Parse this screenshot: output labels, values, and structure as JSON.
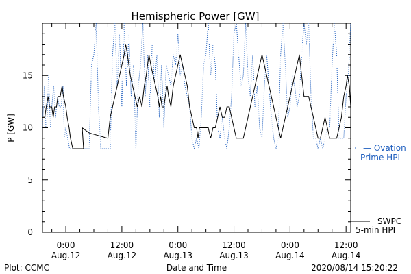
{
  "chart_data": {
    "type": "line",
    "title": "Hemispheric Power [GW]",
    "ylabel": "P [GW]",
    "xlabel": "Date and Time",
    "ylim": [
      0,
      20
    ],
    "xlim_hours": [
      -5,
      61
    ],
    "yticks": [
      0,
      5,
      10,
      15
    ],
    "xticks": [
      {
        "hour": 0,
        "time": "0:00",
        "date": "Aug.12"
      },
      {
        "hour": 12,
        "time": "12:00",
        "date": "Aug.12"
      },
      {
        "hour": 24,
        "time": "0:00",
        "date": "Aug.13"
      },
      {
        "hour": 36,
        "time": "12:00",
        "date": "Aug.13"
      },
      {
        "hour": 48,
        "time": "0:00",
        "date": "Aug.14"
      },
      {
        "hour": 60,
        "time": "12:00",
        "date": "Aug.14"
      }
    ],
    "legend_placement": "right",
    "series": [
      {
        "name": "SWPC 5-min HPI",
        "legend_line1": "SWPC",
        "legend_line2": "5-min HPI",
        "color": "#000000",
        "style": "solid",
        "points": [
          [
            -5,
            11
          ],
          [
            -4.5,
            11
          ],
          [
            -4.2,
            12
          ],
          [
            -3.8,
            13
          ],
          [
            -3.5,
            12
          ],
          [
            -3,
            12
          ],
          [
            -2.7,
            11
          ],
          [
            -2.4,
            12
          ],
          [
            -2,
            12
          ],
          [
            -1.7,
            13
          ],
          [
            -1.2,
            13
          ],
          [
            -0.8,
            14
          ],
          [
            -0.5,
            13
          ],
          [
            0,
            12
          ],
          [
            0.3,
            11
          ],
          [
            0.7,
            10
          ],
          [
            1,
            9
          ],
          [
            1.5,
            8
          ],
          [
            2.5,
            8
          ],
          [
            3,
            8
          ],
          [
            3.8,
            8
          ],
          [
            3.5,
            10
          ],
          [
            5,
            9.5
          ],
          [
            9,
            9
          ],
          [
            9.5,
            11
          ],
          [
            10,
            12
          ],
          [
            10.5,
            13
          ],
          [
            11,
            14
          ],
          [
            11.5,
            15
          ],
          [
            12,
            16
          ],
          [
            12.5,
            17
          ],
          [
            12.8,
            18
          ],
          [
            13.2,
            17
          ],
          [
            13.8,
            15
          ],
          [
            14.3,
            14
          ],
          [
            14.8,
            13
          ],
          [
            15.3,
            12
          ],
          [
            15.8,
            13
          ],
          [
            16.3,
            12
          ],
          [
            16.8,
            14
          ],
          [
            17.2,
            15
          ],
          [
            17.5,
            16
          ],
          [
            17.8,
            17
          ],
          [
            18.2,
            16
          ],
          [
            18.7,
            15
          ],
          [
            19.2,
            14
          ],
          [
            19.7,
            13
          ],
          [
            20,
            12
          ],
          [
            20.3,
            13
          ],
          [
            20.6,
            12
          ],
          [
            21,
            12
          ],
          [
            21.3,
            13
          ],
          [
            21.7,
            14
          ],
          [
            22,
            13
          ],
          [
            22.5,
            12
          ],
          [
            23,
            14
          ],
          [
            23.5,
            15
          ],
          [
            24,
            16
          ],
          [
            24.5,
            17
          ],
          [
            25,
            16
          ],
          [
            25.5,
            15
          ],
          [
            26,
            14
          ],
          [
            26.5,
            12
          ],
          [
            27,
            11
          ],
          [
            27.5,
            10
          ],
          [
            28,
            10
          ],
          [
            28.3,
            9
          ],
          [
            28.6,
            10
          ],
          [
            30,
            10
          ],
          [
            30.5,
            10
          ],
          [
            31,
            9
          ],
          [
            31.5,
            10
          ],
          [
            32,
            10
          ],
          [
            32.5,
            11
          ],
          [
            33,
            12
          ],
          [
            33.5,
            11
          ],
          [
            34,
            11
          ],
          [
            34.5,
            12
          ],
          [
            35,
            12
          ],
          [
            35.5,
            11
          ],
          [
            36,
            10
          ],
          [
            36.5,
            9
          ],
          [
            37,
            9
          ],
          [
            38,
            9
          ],
          [
            38.5,
            10
          ],
          [
            39,
            11
          ],
          [
            39.5,
            12
          ],
          [
            40,
            13
          ],
          [
            40.5,
            14
          ],
          [
            41,
            15
          ],
          [
            41.5,
            16
          ],
          [
            42,
            17
          ],
          [
            42.5,
            16
          ],
          [
            43,
            15
          ],
          [
            43.5,
            14
          ],
          [
            44,
            13
          ],
          [
            44.5,
            12
          ],
          [
            45,
            11
          ],
          [
            45.5,
            10
          ],
          [
            46,
            9
          ],
          [
            46.5,
            10
          ],
          [
            47,
            11
          ],
          [
            47.5,
            12
          ],
          [
            48,
            13
          ],
          [
            48.5,
            14
          ],
          [
            49,
            15
          ],
          [
            49.5,
            16
          ],
          [
            50,
            17
          ],
          [
            50.5,
            15
          ],
          [
            51,
            13
          ],
          [
            52,
            13
          ],
          [
            52.5,
            12
          ],
          [
            53,
            11
          ],
          [
            53.5,
            10
          ],
          [
            54,
            9
          ],
          [
            54.5,
            9
          ],
          [
            55,
            10
          ],
          [
            55.5,
            11
          ],
          [
            56,
            10
          ],
          [
            56.5,
            9
          ],
          [
            57,
            9
          ],
          [
            58,
            9
          ],
          [
            58.5,
            10
          ],
          [
            59,
            11
          ],
          [
            59.5,
            13
          ],
          [
            60,
            14
          ],
          [
            60.3,
            15
          ],
          [
            60.7,
            14
          ],
          [
            61,
            12
          ]
        ]
      },
      {
        "name": "Ovation Prime HPI",
        "legend_line1": "— Ovation",
        "legend_line2": "Prime HPI",
        "color": "#1f5fbf",
        "style": "dotted",
        "points": [
          [
            -5,
            10
          ],
          [
            -4.6,
            14
          ],
          [
            -4.3,
            10
          ],
          [
            -4,
            11
          ],
          [
            -3.7,
            15
          ],
          [
            -3.3,
            10
          ],
          [
            -3,
            12
          ],
          [
            -2.6,
            14
          ],
          [
            -2.2,
            11
          ],
          [
            -1.8,
            13
          ],
          [
            -1.4,
            12
          ],
          [
            -1,
            12
          ],
          [
            -0.6,
            14
          ],
          [
            -0.3,
            9
          ],
          [
            0,
            10
          ],
          [
            0.4,
            9
          ],
          [
            0.8,
            8
          ],
          [
            1.5,
            8
          ],
          [
            2,
            8
          ],
          [
            3,
            8
          ],
          [
            3.8,
            8
          ],
          [
            4.5,
            8
          ],
          [
            5,
            8
          ],
          [
            5.5,
            16
          ],
          [
            6,
            17
          ],
          [
            6.5,
            20
          ],
          [
            7,
            12
          ],
          [
            7.5,
            8
          ],
          [
            8,
            8
          ],
          [
            8.5,
            8
          ],
          [
            9,
            8
          ],
          [
            9.5,
            8
          ],
          [
            10,
            17
          ],
          [
            10.5,
            20
          ],
          [
            11,
            14
          ],
          [
            11.5,
            19
          ],
          [
            12,
            12
          ],
          [
            12.5,
            20
          ],
          [
            13,
            14
          ],
          [
            13.5,
            19
          ],
          [
            14,
            13
          ],
          [
            14.5,
            16
          ],
          [
            15,
            8
          ],
          [
            15.5,
            14
          ],
          [
            16,
            16
          ],
          [
            16.5,
            20
          ],
          [
            17,
            13
          ],
          [
            17.5,
            17
          ],
          [
            18,
            12
          ],
          [
            18.5,
            18
          ],
          [
            19,
            14
          ],
          [
            19.5,
            17
          ],
          [
            20,
            11
          ],
          [
            20.5,
            16
          ],
          [
            21,
            10
          ],
          [
            21.5,
            16
          ],
          [
            22,
            15
          ],
          [
            22.5,
            14
          ],
          [
            23,
            17
          ],
          [
            23.5,
            16
          ],
          [
            24,
            19
          ],
          [
            24.5,
            15
          ],
          [
            25,
            16
          ],
          [
            25.5,
            14
          ],
          [
            26,
            13
          ],
          [
            26.5,
            12
          ],
          [
            27,
            9
          ],
          [
            27.5,
            8
          ],
          [
            28,
            9
          ],
          [
            28.5,
            8
          ],
          [
            29,
            11
          ],
          [
            29.5,
            16
          ],
          [
            30,
            17
          ],
          [
            30.5,
            20
          ],
          [
            31,
            15
          ],
          [
            31.5,
            18
          ],
          [
            32,
            16
          ],
          [
            32.5,
            10
          ],
          [
            33,
            9
          ],
          [
            33.5,
            11
          ],
          [
            34,
            9
          ],
          [
            34.5,
            8
          ],
          [
            35,
            10
          ],
          [
            35.5,
            13
          ],
          [
            36,
            19
          ],
          [
            36.5,
            20
          ],
          [
            37,
            17
          ],
          [
            37.5,
            14
          ],
          [
            38,
            15
          ],
          [
            38.5,
            20
          ],
          [
            39,
            15
          ],
          [
            39.5,
            13
          ],
          [
            40,
            17
          ],
          [
            40.5,
            12
          ],
          [
            41,
            14
          ],
          [
            41.5,
            10
          ],
          [
            42,
            9
          ],
          [
            42.5,
            14
          ],
          [
            43,
            17
          ],
          [
            43.5,
            14
          ],
          [
            44,
            11
          ],
          [
            44.5,
            9
          ],
          [
            45,
            8
          ],
          [
            45.5,
            9
          ],
          [
            46,
            17
          ],
          [
            46.5,
            20
          ],
          [
            47,
            16
          ],
          [
            47.5,
            11
          ],
          [
            48,
            12
          ],
          [
            48.5,
            15
          ],
          [
            49,
            14
          ],
          [
            49.5,
            12
          ],
          [
            50,
            13
          ],
          [
            50.5,
            17
          ],
          [
            51,
            20
          ],
          [
            51.5,
            18
          ],
          [
            52,
            20
          ],
          [
            52.5,
            13
          ],
          [
            53,
            9
          ],
          [
            53.5,
            9
          ],
          [
            54,
            8
          ],
          [
            54.5,
            9
          ],
          [
            55,
            8
          ],
          [
            55.5,
            9
          ],
          [
            56,
            10
          ],
          [
            56.5,
            10
          ],
          [
            57,
            16
          ],
          [
            57.5,
            20
          ],
          [
            58,
            17
          ],
          [
            58.5,
            9
          ],
          [
            59,
            9
          ],
          [
            59.5,
            9
          ],
          [
            60,
            13
          ],
          [
            60.5,
            15
          ],
          [
            61,
            20
          ]
        ]
      }
    ]
  },
  "footer": {
    "left": "Plot: CCMC",
    "center": "Date and Time",
    "right": "2020/08/14 15:20:22"
  }
}
